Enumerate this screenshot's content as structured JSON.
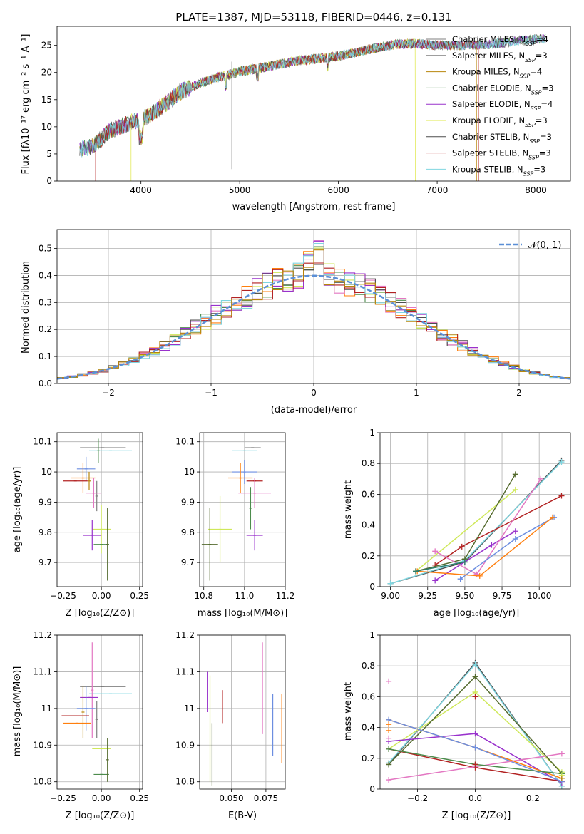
{
  "figure": {
    "background": "#ffffff",
    "series_colors": [
      "#7f7f7f",
      "#7f7f7f",
      "#b8860b",
      "#4c8c4c",
      "#9932cc",
      "#dfe84a",
      "#4d4d4d",
      "#b22222",
      "#7fd6e0"
    ],
    "run_colors": [
      "#2e7d6b",
      "#ff7f0e",
      "#6c8ee0",
      "#e377c2",
      "#cfe85a",
      "#9932cc",
      "#b22222",
      "#7fd6e0",
      "#556b2f"
    ]
  },
  "chart_data": [
    {
      "id": "spectrum",
      "type": "line",
      "title": "PLATE=1387, MJD=53118, FIBERID=0446, z=0.131",
      "xlabel": "wavelength [Angstrom, rest frame]",
      "ylabel": "Flux [fλ10⁻¹⁷ erg cm⁻² s⁻¹ A⁻¹]",
      "xlim": [
        3150,
        8350
      ],
      "ylim": [
        0,
        28.5
      ],
      "xticks": [
        4000,
        5000,
        6000,
        7000,
        8000
      ],
      "yticks": [
        0,
        5,
        10,
        15,
        20,
        25
      ],
      "grid": false,
      "legend_position": "top-right",
      "spectrum_shape": {
        "wavelength": [
          3380,
          3500,
          3700,
          3900,
          4000,
          4200,
          4400,
          4600,
          4800,
          5000,
          5200,
          5400,
          5600,
          5800,
          6000,
          6200,
          6400,
          6600,
          6800,
          7000,
          7200,
          7400,
          7600,
          7800,
          8000,
          8100
        ],
        "flux": [
          5.8,
          6.2,
          9.5,
          10.8,
          11.2,
          13.5,
          16.5,
          18.0,
          19.2,
          20.2,
          20.8,
          21.5,
          22.2,
          22.6,
          23.0,
          23.8,
          24.6,
          25.2,
          25.3,
          25.0,
          25.0,
          25.1,
          25.3,
          25.8,
          26.1,
          26.3
        ]
      },
      "series": [
        {
          "name": "Chabrier MILES, N",
          "sub": "SSP",
          "suffix": "=4",
          "color": "#7f7f7f"
        },
        {
          "name": "Salpeter MILES, N",
          "sub": "SSP",
          "suffix": "=3",
          "color": "#7f7f7f"
        },
        {
          "name": "Kroupa MILES, N",
          "sub": "SSP",
          "suffix": "=4",
          "color": "#b8860b"
        },
        {
          "name": "Chabrier ELODIE, N",
          "sub": "SSP",
          "suffix": "=3",
          "color": "#4c8c4c"
        },
        {
          "name": "Salpeter ELODIE, N",
          "sub": "SSP",
          "suffix": "=4",
          "color": "#9932cc"
        },
        {
          "name": "Kroupa ELODIE, N",
          "sub": "SSP",
          "suffix": "=3",
          "color": "#dfe84a"
        },
        {
          "name": "Chabrier STELIB, N",
          "sub": "SSP",
          "suffix": "=3",
          "color": "#4d4d4d"
        },
        {
          "name": "Salpeter STELIB, N",
          "sub": "SSP",
          "suffix": "=3",
          "color": "#b22222"
        },
        {
          "name": "Kroupa STELIB, N",
          "sub": "SSP",
          "suffix": "=3",
          "color": "#7fd6e0"
        }
      ]
    },
    {
      "id": "residuals",
      "type": "area",
      "xlabel": "(data-model)/error",
      "ylabel": "Normed distribution",
      "xlim": [
        -2.5,
        2.5
      ],
      "ylim": [
        0,
        0.57
      ],
      "xticks": [
        -2,
        -1,
        0,
        1,
        2
      ],
      "xtick_labels": [
        "−2",
        "−1",
        "0",
        "1",
        "2"
      ],
      "yticks": [
        0.0,
        0.1,
        0.2,
        0.3,
        0.4,
        0.5
      ],
      "ytick_labels": [
        "0.0",
        "0.1",
        "0.2",
        "0.3",
        "0.4",
        "0.5"
      ],
      "grid": true,
      "legend_position": "top-right",
      "reference": {
        "name": "𝒩(0, 1)",
        "color": "#5b8fd6",
        "style": "dashed"
      },
      "bin_width": 0.1,
      "bin_start": -2.5,
      "histogram_series": 9
    },
    {
      "id": "age-vs-Z",
      "type": "scatter",
      "xlabel": "Z [log₁₀(Z/Z⊙)]",
      "ylabel": "age  [log₁₀(age/yr)]",
      "xlim": [
        -0.29,
        0.27
      ],
      "ylim": [
        9.62,
        10.13
      ],
      "xticks": [
        -0.25,
        0.0,
        0.25
      ],
      "xtick_labels": [
        "−0.25",
        "0.00",
        "0.25"
      ],
      "yticks": [
        9.7,
        9.8,
        9.9,
        10.0,
        10.1
      ],
      "grid": true,
      "points": [
        {
          "x": 0.01,
          "y": 10.08,
          "xerr": 0.15,
          "yerr": 0.0,
          "color": "#4d4d4d"
        },
        {
          "x": 0.06,
          "y": 10.07,
          "xerr": 0.14,
          "yerr": 0.0,
          "color": "#7fd6e0"
        },
        {
          "x": -0.02,
          "y": 10.07,
          "xerr": 0.0,
          "yerr": 0.04,
          "color": "#4c8c4c"
        },
        {
          "x": -0.1,
          "y": 10.01,
          "xerr": 0.06,
          "yerr": 0.04,
          "color": "#6c8ee0"
        },
        {
          "x": -0.12,
          "y": 9.98,
          "xerr": 0.08,
          "yerr": 0.05,
          "color": "#ff7f0e"
        },
        {
          "x": -0.17,
          "y": 9.97,
          "xerr": 0.08,
          "yerr": 0.0,
          "color": "#b22222"
        },
        {
          "x": -0.08,
          "y": 9.97,
          "xerr": 0.0,
          "yerr": 0.03,
          "color": "#b8860b"
        },
        {
          "x": -0.03,
          "y": 9.92,
          "xerr": 0.0,
          "yerr": 0.05,
          "color": "#7f7f7f"
        },
        {
          "x": -0.05,
          "y": 9.93,
          "xerr": 0.05,
          "yerr": 0.05,
          "color": "#e377c2"
        },
        {
          "x": 0.0,
          "y": 9.81,
          "xerr": 0.06,
          "yerr": 0.08,
          "color": "#cfe85a"
        },
        {
          "x": -0.06,
          "y": 9.79,
          "xerr": 0.06,
          "yerr": 0.05,
          "color": "#9932cc"
        },
        {
          "x": 0.0,
          "y": 9.76,
          "xerr": 0.05,
          "yerr": 0.0,
          "color": "#4c8c4c"
        },
        {
          "x": 0.04,
          "y": 9.76,
          "xerr": 0.0,
          "yerr": 0.12,
          "color": "#556b2f"
        }
      ]
    },
    {
      "id": "age-vs-mass",
      "type": "scatter",
      "xlabel": "mass [log₁₀(M/M⊙)]",
      "xlim": [
        10.78,
        11.2
      ],
      "ylim": [
        9.62,
        10.13
      ],
      "xticks": [
        10.8,
        11.0,
        11.2
      ],
      "xtick_labels": [
        "10.8",
        "11.0",
        "11.2"
      ],
      "yticks": [
        9.7,
        9.8,
        9.9,
        10.0,
        10.1
      ],
      "grid": true,
      "points": [
        {
          "x": 11.04,
          "y": 10.08,
          "xerr": 0.04,
          "yerr": 0.0,
          "color": "#4d4d4d"
        },
        {
          "x": 11.0,
          "y": 10.07,
          "xerr": 0.06,
          "yerr": 0.0,
          "color": "#7fd6e0"
        },
        {
          "x": 11.0,
          "y": 10.0,
          "xerr": 0.06,
          "yerr": 0.04,
          "color": "#6c8ee0"
        },
        {
          "x": 10.98,
          "y": 9.98,
          "xerr": 0.06,
          "yerr": 0.05,
          "color": "#ff7f0e"
        },
        {
          "x": 11.05,
          "y": 9.97,
          "xerr": 0.04,
          "yerr": 0.0,
          "color": "#b22222"
        },
        {
          "x": 11.05,
          "y": 9.93,
          "xerr": 0.08,
          "yerr": 0.05,
          "color": "#e377c2"
        },
        {
          "x": 10.88,
          "y": 9.81,
          "xerr": 0.06,
          "yerr": 0.11,
          "color": "#cfe85a"
        },
        {
          "x": 11.05,
          "y": 9.79,
          "xerr": 0.04,
          "yerr": 0.05,
          "color": "#9932cc"
        },
        {
          "x": 10.83,
          "y": 9.76,
          "xerr": 0.04,
          "yerr": 0.12,
          "color": "#556b2f"
        },
        {
          "x": 11.03,
          "y": 9.88,
          "xerr": 0.0,
          "yerr": 0.07,
          "color": "#4c8c4c"
        }
      ]
    },
    {
      "id": "massweight-vs-age",
      "type": "line",
      "xlabel": "age  [log₁₀(age/yr)]",
      "ylabel": "mass weight",
      "xlim": [
        8.93,
        10.21
      ],
      "ylim": [
        0,
        1.0
      ],
      "xticks": [
        9.0,
        9.25,
        9.5,
        9.75,
        10.0
      ],
      "xtick_labels": [
        "9.00",
        "9.25",
        "9.50",
        "9.75",
        "10.00"
      ],
      "yticks": [
        0.0,
        0.2,
        0.4,
        0.6,
        0.8,
        1.0
      ],
      "grid": true,
      "series": [
        {
          "color": "#4d4d4d",
          "x": [
            9.0,
            9.5,
            10.15
          ],
          "y": [
            0.02,
            0.16,
            0.82
          ]
        },
        {
          "color": "#7fd6e0",
          "x": [
            9.0,
            9.5,
            10.15
          ],
          "y": [
            0.02,
            0.17,
            0.81
          ]
        },
        {
          "color": "#b22222",
          "x": [
            9.3,
            9.48,
            10.15
          ],
          "y": [
            0.14,
            0.26,
            0.59
          ]
        },
        {
          "color": "#cfe85a",
          "x": [
            9.17,
            9.84
          ],
          "y": [
            0.1,
            0.63
          ]
        },
        {
          "color": "#556b2f",
          "x": [
            9.17,
            9.5,
            9.84
          ],
          "y": [
            0.1,
            0.18,
            0.73
          ]
        },
        {
          "color": "#9932cc",
          "x": [
            9.3,
            9.68,
            9.84
          ],
          "y": [
            0.04,
            0.27,
            0.36
          ]
        },
        {
          "color": "#e377c2",
          "x": [
            9.3,
            9.58,
            10.01
          ],
          "y": [
            0.23,
            0.08,
            0.7
          ]
        },
        {
          "color": "#6c8ee0",
          "x": [
            9.47,
            9.84,
            10.1
          ],
          "y": [
            0.05,
            0.31,
            0.45
          ]
        },
        {
          "color": "#ff7f0e",
          "x": [
            9.18,
            9.6,
            10.09
          ],
          "y": [
            0.1,
            0.07,
            0.45
          ]
        },
        {
          "color": "#2e7d6b",
          "x": [
            9.17,
            9.5
          ],
          "y": [
            0.1,
            0.16
          ]
        }
      ]
    },
    {
      "id": "mass-vs-Z",
      "type": "scatter",
      "xlabel": "Z [log₁₀(Z/Z⊙)]",
      "ylabel": "mass [log₁₀(M/M⊙)]",
      "xlim": [
        -0.29,
        0.27
      ],
      "ylim": [
        10.78,
        11.2
      ],
      "xticks": [
        -0.25,
        0.0,
        0.25
      ],
      "xtick_labels": [
        "−0.25",
        "0.00",
        "0.25"
      ],
      "yticks": [
        10.8,
        10.9,
        11.0,
        11.1,
        11.2
      ],
      "grid": true,
      "points": [
        {
          "x": 0.01,
          "y": 11.06,
          "xerr": 0.15,
          "yerr": 0.0,
          "color": "#4d4d4d"
        },
        {
          "x": 0.06,
          "y": 11.04,
          "xerr": 0.14,
          "yerr": 0.0,
          "color": "#7fd6e0"
        },
        {
          "x": -0.06,
          "y": 11.05,
          "xerr": 0.0,
          "yerr": 0.13,
          "color": "#e377c2"
        },
        {
          "x": -0.08,
          "y": 11.03,
          "xerr": 0.06,
          "yerr": 0.0,
          "color": "#9932cc"
        },
        {
          "x": -0.1,
          "y": 11.0,
          "xerr": 0.06,
          "yerr": 0.06,
          "color": "#6c8ee0"
        },
        {
          "x": -0.17,
          "y": 10.98,
          "xerr": 0.09,
          "yerr": 0.0,
          "color": "#b22222"
        },
        {
          "x": -0.16,
          "y": 10.96,
          "xerr": 0.09,
          "yerr": 0.0,
          "color": "#ff7f0e"
        },
        {
          "x": -0.12,
          "y": 10.99,
          "xerr": 0.0,
          "yerr": 0.07,
          "color": "#b8860b"
        },
        {
          "x": 0.0,
          "y": 10.89,
          "xerr": 0.06,
          "yerr": 0.0,
          "color": "#cfe85a"
        },
        {
          "x": -0.03,
          "y": 10.97,
          "xerr": 0.0,
          "yerr": 0.05,
          "color": "#7f7f7f"
        },
        {
          "x": 0.0,
          "y": 10.82,
          "xerr": 0.05,
          "yerr": 0.0,
          "color": "#4c8c4c"
        },
        {
          "x": 0.04,
          "y": 10.86,
          "xerr": 0.0,
          "yerr": 0.06,
          "color": "#556b2f"
        }
      ]
    },
    {
      "id": "mass-vs-ebv",
      "type": "scatter",
      "xlabel": "E(B-V)",
      "xlim": [
        0.027,
        0.089
      ],
      "ylim": [
        10.78,
        11.2
      ],
      "xticks": [
        0.05,
        0.075
      ],
      "xtick_labels": [
        "0.050",
        "0.075"
      ],
      "yticks": [
        10.8,
        10.9,
        11.0,
        11.1,
        11.2
      ],
      "grid": true,
      "vlines": [
        {
          "x": 0.0325,
          "y0": 10.99,
          "y1": 11.1,
          "color": "#9932cc"
        },
        {
          "x": 0.0345,
          "y0": 10.8,
          "y1": 11.09,
          "color": "#cfe85a"
        },
        {
          "x": 0.036,
          "y0": 10.79,
          "y1": 10.96,
          "color": "#556b2f"
        },
        {
          "x": 0.0435,
          "y0": 10.96,
          "y1": 11.05,
          "color": "#b22222"
        },
        {
          "x": 0.0725,
          "y0": 10.93,
          "y1": 11.18,
          "color": "#e377c2"
        },
        {
          "x": 0.08,
          "y0": 10.87,
          "y1": 11.04,
          "color": "#6c8ee0"
        },
        {
          "x": 0.0865,
          "y0": 10.85,
          "y1": 11.04,
          "color": "#ff7f0e"
        }
      ]
    },
    {
      "id": "massweight-vs-Z",
      "type": "line",
      "xlabel": "Z [log₁₀(Z/Z⊙)]",
      "ylabel": "mass weight",
      "xlim": [
        -0.33,
        0.33
      ],
      "ylim": [
        0,
        1.0
      ],
      "xticks": [
        -0.2,
        0.0,
        0.2
      ],
      "xtick_labels": [
        "−0.2",
        "0.0",
        "0.2"
      ],
      "yticks": [
        0.0,
        0.2,
        0.4,
        0.6,
        0.8,
        1.0
      ],
      "grid": true,
      "series": [
        {
          "color": "#4d4d4d",
          "x": [
            -0.3,
            0.0,
            0.3
          ],
          "y": [
            0.16,
            0.82,
            0.02
          ]
        },
        {
          "color": "#7fd6e0",
          "x": [
            -0.3,
            0.0,
            0.3
          ],
          "y": [
            0.17,
            0.81,
            0.02
          ]
        },
        {
          "color": "#cfe85a",
          "x": [
            -0.3,
            0.0,
            0.3
          ],
          "y": [
            0.26,
            0.63,
            0.11
          ]
        },
        {
          "color": "#556b2f",
          "x": [
            -0.3,
            0.0,
            0.3
          ],
          "y": [
            0.16,
            0.73,
            0.1
          ]
        },
        {
          "color": "#9932cc",
          "x": [
            -0.3,
            0.0,
            0.3
          ],
          "y": [
            0.31,
            0.36,
            0.04
          ]
        },
        {
          "color": "#b22222",
          "x": [
            -0.3,
            0.0,
            0.3
          ],
          "y": [
            0.26,
            0.14,
            0.05
          ]
        },
        {
          "color": "#ff7f0e",
          "x": [
            -0.3,
            0.0,
            0.3
          ],
          "y": [
            0.45,
            0.27,
            0.07
          ]
        },
        {
          "color": "#6c8ee0",
          "x": [
            -0.3,
            0.0,
            0.3
          ],
          "y": [
            0.45,
            0.27,
            0.05
          ]
        },
        {
          "color": "#e377c2",
          "x": [
            -0.3,
            0.3
          ],
          "y": [
            0.06,
            0.23
          ]
        },
        {
          "color": "#4c8c4c",
          "x": [
            -0.3,
            0.0,
            0.3
          ],
          "y": [
            0.26,
            0.16,
            0.1
          ]
        }
      ],
      "markers": [
        {
          "x": -0.3,
          "y": 0.7,
          "color": "#e377c2"
        },
        {
          "x": -0.3,
          "y": 0.42,
          "color": "#ff7f0e"
        },
        {
          "x": -0.3,
          "y": 0.38,
          "color": "#ff7f0e"
        },
        {
          "x": -0.3,
          "y": 0.33,
          "color": "#e377c2"
        },
        {
          "x": 0.0,
          "y": 0.6,
          "color": "#b22222"
        },
        {
          "x": 0.0,
          "y": 0.16,
          "color": "#b22222"
        },
        {
          "x": 0.3,
          "y": 0.09,
          "color": "#cfe85a"
        },
        {
          "x": 0.3,
          "y": 0.07,
          "color": "#b8860b"
        }
      ]
    }
  ]
}
